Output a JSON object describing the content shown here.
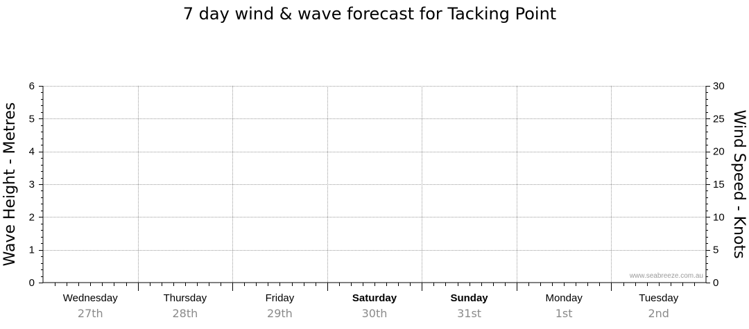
{
  "chart_data": {
    "type": "line",
    "title": "7 day wind & wave forecast for Tacking Point",
    "ylabel": "Wave Height - Metres",
    "y2label": "Wind Speed - Knots",
    "ylim": [
      0,
      6
    ],
    "y2lim": [
      0,
      30
    ],
    "yticks": [
      "0",
      "1",
      "2",
      "3",
      "4",
      "5",
      "6"
    ],
    "y2ticks": [
      "0",
      "5",
      "10",
      "15",
      "20",
      "25",
      "30"
    ],
    "days": [
      {
        "name": "Wednesday",
        "date": "27th",
        "weekend": false
      },
      {
        "name": "Thursday",
        "date": "28th",
        "weekend": false
      },
      {
        "name": "Friday",
        "date": "29th",
        "weekend": false
      },
      {
        "name": "Saturday",
        "date": "30th",
        "weekend": true
      },
      {
        "name": "Sunday",
        "date": "31st",
        "weekend": true
      },
      {
        "name": "Monday",
        "date": "1st",
        "weekend": false
      },
      {
        "name": "Tuesday",
        "date": "2nd",
        "weekend": false
      }
    ],
    "series": [],
    "grid": true,
    "watermark": "www.seabreeze.com.au"
  }
}
